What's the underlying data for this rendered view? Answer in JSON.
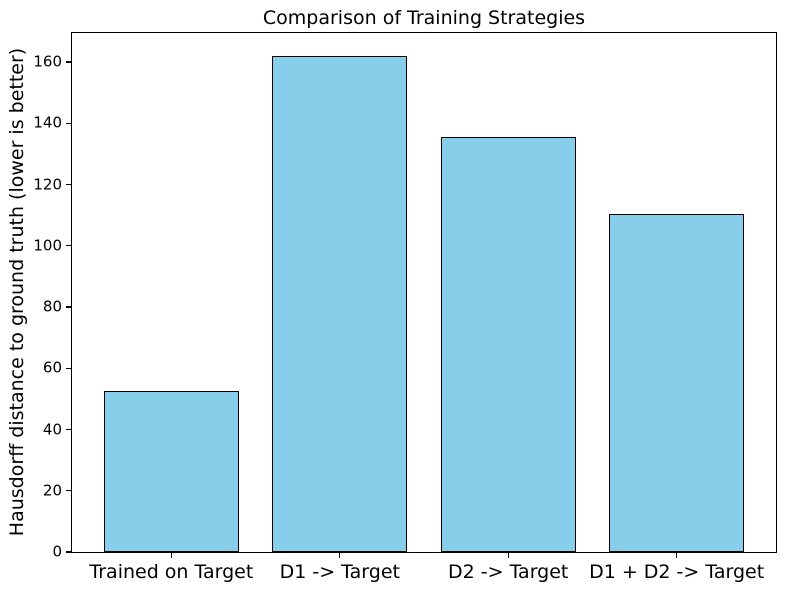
{
  "figure": {
    "background": "#ffffff",
    "text_color": "#000000"
  },
  "chart_data": {
    "type": "bar",
    "title": "Comparison of Training Strategies",
    "xlabel": "",
    "ylabel": "Hausdorff distance to ground truth (lower is better)",
    "categories": [
      "Trained on Target",
      "D1 -> Target",
      "D2 -> Target",
      "D1 + D2 -> Target"
    ],
    "values": [
      52.5,
      162,
      135.5,
      110.5
    ],
    "yticks": [
      0,
      20,
      40,
      60,
      80,
      100,
      120,
      140,
      160
    ],
    "ylim": [
      0,
      169.5
    ],
    "bar_color": "#87CEEB",
    "bar_edge_color": "#000000",
    "bar_width_fraction": 0.8,
    "x_margin": 0.59,
    "grid": false,
    "legend": false
  }
}
